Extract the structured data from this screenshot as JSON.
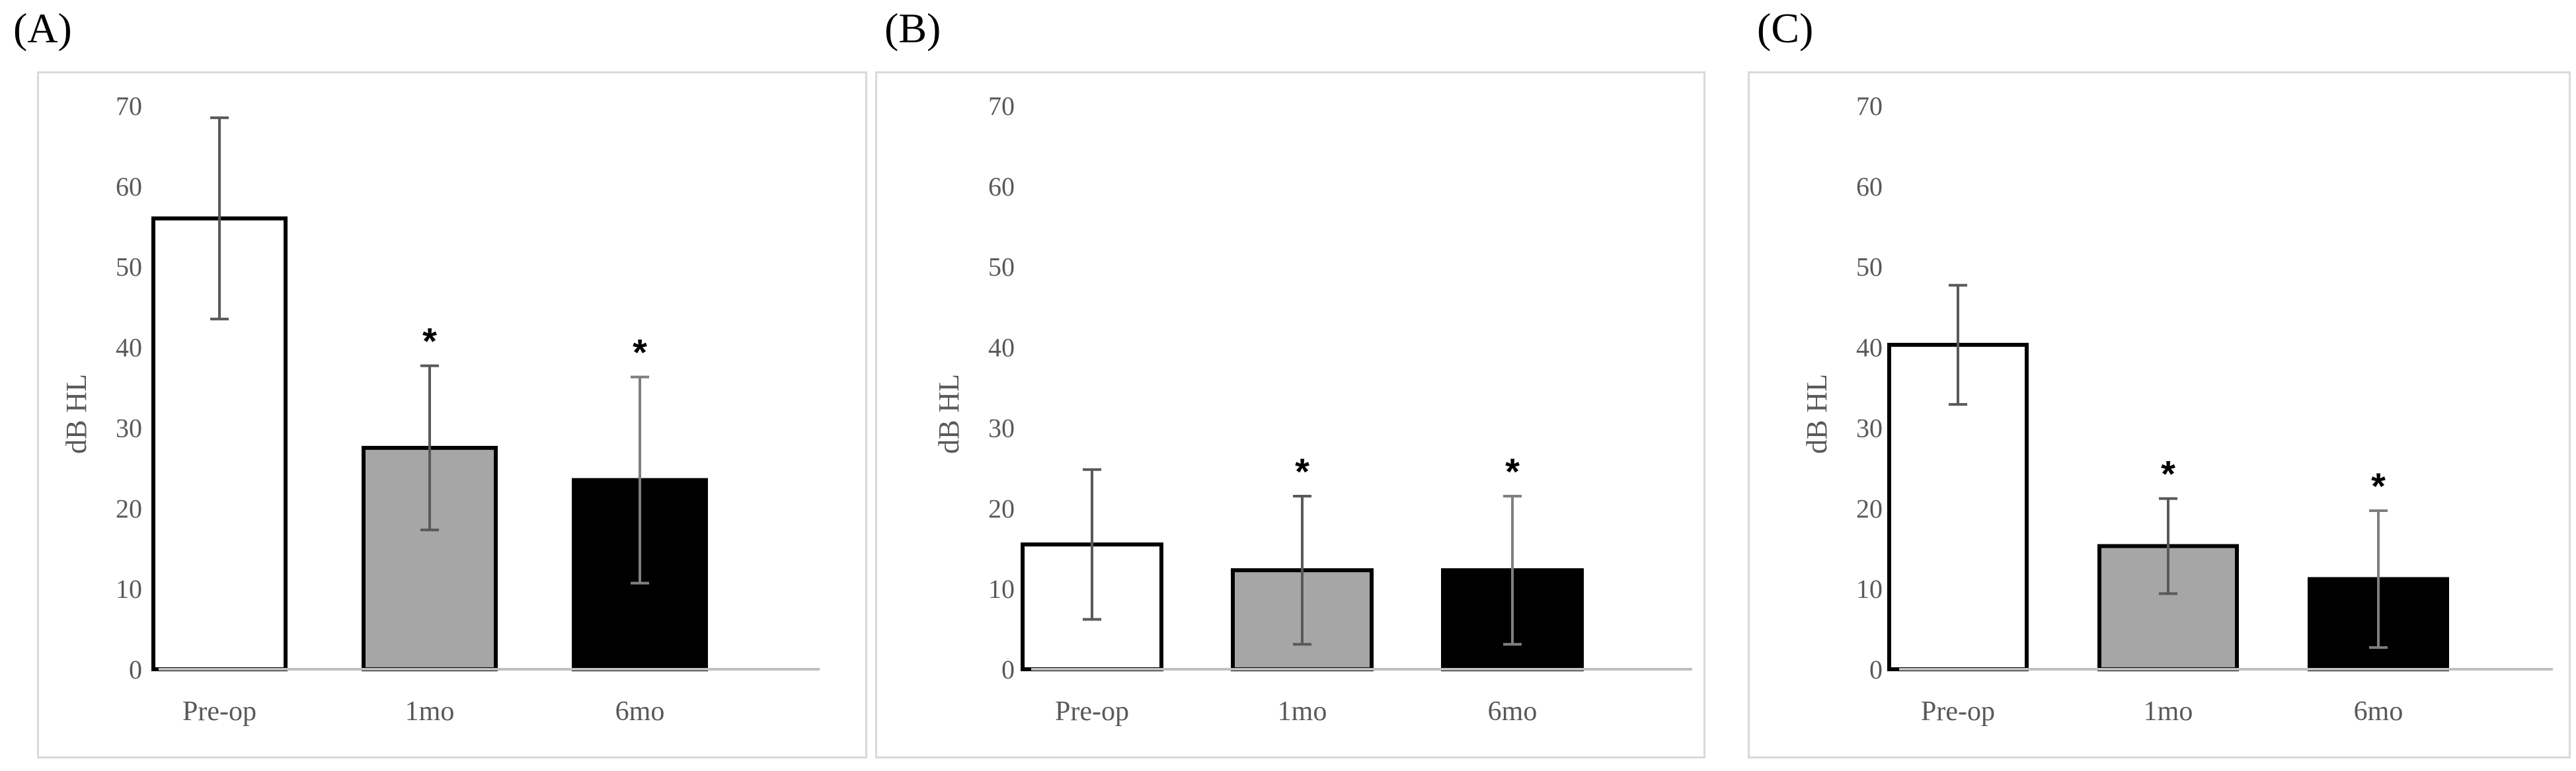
{
  "colors": {
    "pre_op": "#ffffff",
    "one_mo": "#a6a6a6",
    "six_mo": "#000000",
    "axis": "#bfbfbf",
    "tick_text": "#595959",
    "frame": "#d9d9d9"
  },
  "chart_data": [
    {
      "type": "bar",
      "panel_label": "(A)",
      "categories": [
        "Pre-op",
        "1mo",
        "6mo"
      ],
      "values": [
        56,
        27.5,
        23.5
      ],
      "error": [
        12.5,
        10.2,
        12.8
      ],
      "significance": [
        "",
        "*",
        "*"
      ],
      "ylabel": "dB HL",
      "ylim": [
        0,
        70
      ],
      "yticks": [
        "0",
        "10",
        "20",
        "30",
        "40",
        "50",
        "60",
        "70"
      ]
    },
    {
      "type": "bar",
      "panel_label": "(B)",
      "categories": [
        "Pre-op",
        "1mo",
        "6mo"
      ],
      "values": [
        15.5,
        12.3,
        12.3
      ],
      "error": [
        9.3,
        9.2,
        9.2
      ],
      "significance": [
        "",
        "*",
        "*"
      ],
      "ylabel": "dB HL",
      "ylim": [
        0,
        70
      ],
      "yticks": [
        "0",
        "10",
        "20",
        "30",
        "40",
        "50",
        "60",
        "70"
      ]
    },
    {
      "type": "bar",
      "panel_label": "(C)",
      "categories": [
        "Pre-op",
        "1mo",
        "6mo"
      ],
      "values": [
        40.3,
        15.3,
        11.2
      ],
      "error": [
        7.4,
        5.9,
        8.5
      ],
      "significance": [
        "",
        "*",
        "*"
      ],
      "ylabel": "dB HL",
      "ylim": [
        0,
        70
      ],
      "yticks": [
        "0",
        "10",
        "20",
        "30",
        "40",
        "50",
        "60",
        "70"
      ]
    }
  ]
}
